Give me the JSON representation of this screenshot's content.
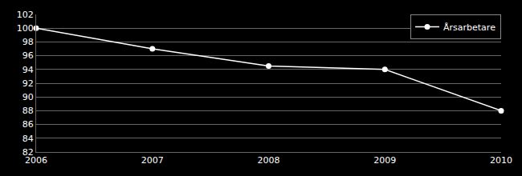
{
  "chart_data": {
    "type": "line",
    "x": [
      2006,
      2007,
      2008,
      2009,
      2010
    ],
    "series": [
      {
        "name": "Årsarbetare",
        "color": "#ffffff",
        "values": [
          100,
          97,
          94.5,
          94,
          88
        ]
      }
    ],
    "xlim": [
      2006,
      2010
    ],
    "xticks": [
      2006,
      2007,
      2008,
      2009,
      2010
    ],
    "ylim": [
      82,
      102
    ],
    "yticks": [
      82,
      84,
      86,
      88,
      90,
      92,
      94,
      96,
      98,
      100,
      102
    ],
    "grid": true,
    "legend": "upper right",
    "marker": "circle"
  }
}
